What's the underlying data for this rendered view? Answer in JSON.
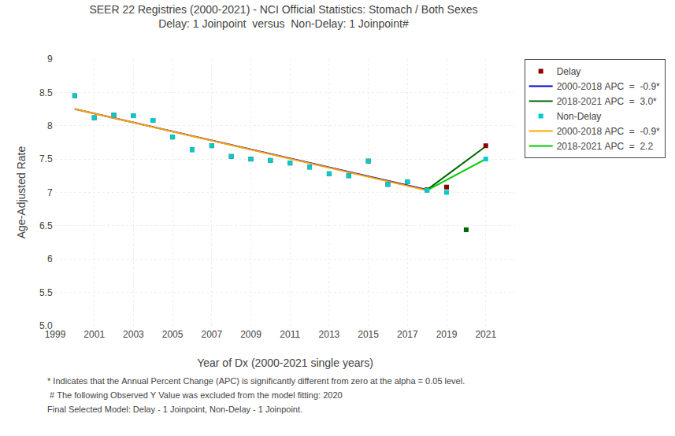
{
  "chart_data": {
    "type": "scatter",
    "title": "SEER 22 Registries (2000-2021) - NCI Official Statistics: Stomach / Both Sexes",
    "subtitle": "Delay: 1 Joinpoint  versus  Non-Delay: 1 Joinpoint#",
    "x_label": "Year of Dx (2000-2021 single years)",
    "y_label": "Age-Adjusted Rate",
    "xlim": [
      1999,
      2022.5
    ],
    "ylim": [
      5.0,
      9.0
    ],
    "xticks": [
      1999,
      2001,
      2003,
      2005,
      2007,
      2009,
      2011,
      2013,
      2015,
      2017,
      2019,
      2021
    ],
    "yticks": [
      {
        "value": 5.0,
        "label": "5.0"
      },
      5.5,
      6,
      6.5,
      7,
      7.5,
      8,
      8.5,
      9
    ],
    "grid": true,
    "legend": "right",
    "series": [
      {
        "name": "Delay",
        "type": "scatter",
        "marker": "square",
        "color": "#8B0000",
        "x": [
          2000,
          2001,
          2002,
          2003,
          2004,
          2005,
          2006,
          2007,
          2008,
          2009,
          2010,
          2011,
          2012,
          2013,
          2014,
          2015,
          2016,
          2017,
          2018,
          2019,
          2021
        ],
        "values": [
          8.45,
          8.12,
          8.16,
          8.15,
          8.08,
          7.83,
          7.64,
          7.7,
          7.54,
          7.5,
          7.48,
          7.44,
          7.38,
          7.28,
          7.25,
          7.47,
          7.12,
          7.16,
          7.04,
          7.08,
          7.7
        ]
      },
      {
        "name": "2000-2018 APC  =  -0.9*",
        "type": "line",
        "line_style": "solid",
        "color": "#0000CD",
        "x": [
          2000,
          2018
        ],
        "values": [
          8.25,
          7.04
        ]
      },
      {
        "name": "2018-2021 APC  =  3.0*",
        "type": "line",
        "line_style": "solid",
        "color": "#006400",
        "x": [
          2018,
          2021
        ],
        "values": [
          7.04,
          7.69
        ]
      },
      {
        "name": "Non-Delay",
        "type": "scatter",
        "marker": "square",
        "color": "#00CCCC",
        "x": [
          2000,
          2001,
          2002,
          2003,
          2004,
          2005,
          2006,
          2007,
          2008,
          2009,
          2010,
          2011,
          2012,
          2013,
          2014,
          2015,
          2016,
          2017,
          2018,
          2019,
          2021
        ],
        "values": [
          8.45,
          8.12,
          8.16,
          8.15,
          8.08,
          7.83,
          7.64,
          7.7,
          7.54,
          7.5,
          7.48,
          7.44,
          7.38,
          7.28,
          7.25,
          7.47,
          7.12,
          7.16,
          7.03,
          7.0,
          7.5
        ]
      },
      {
        "name": "2000-2018 APC  =  -0.9*",
        "type": "line",
        "line_style": "solid",
        "color": "#FFA500",
        "x": [
          2000,
          2018
        ],
        "values": [
          8.25,
          7.03
        ]
      },
      {
        "name": "2018-2021 APC  =  2.2",
        "type": "line",
        "line_style": "solid",
        "color": "#00CC00",
        "x": [
          2018,
          2021
        ],
        "values": [
          7.03,
          7.5
        ]
      },
      {
        "type": "scatter",
        "marker": "square",
        "color": "#006400",
        "x": [
          2020
        ],
        "values": [
          6.44
        ]
      }
    ],
    "annotations": [
      "* Indicates that the Annual Percent Change (APC) is significantly different from zero at the alpha = 0.05 level.",
      " # The following Observed Y Value was excluded from the model fitting: 2020",
      "Final Selected Model: Delay - 1 Joinpoint, Non-Delay - 1 Joinpoint."
    ]
  }
}
